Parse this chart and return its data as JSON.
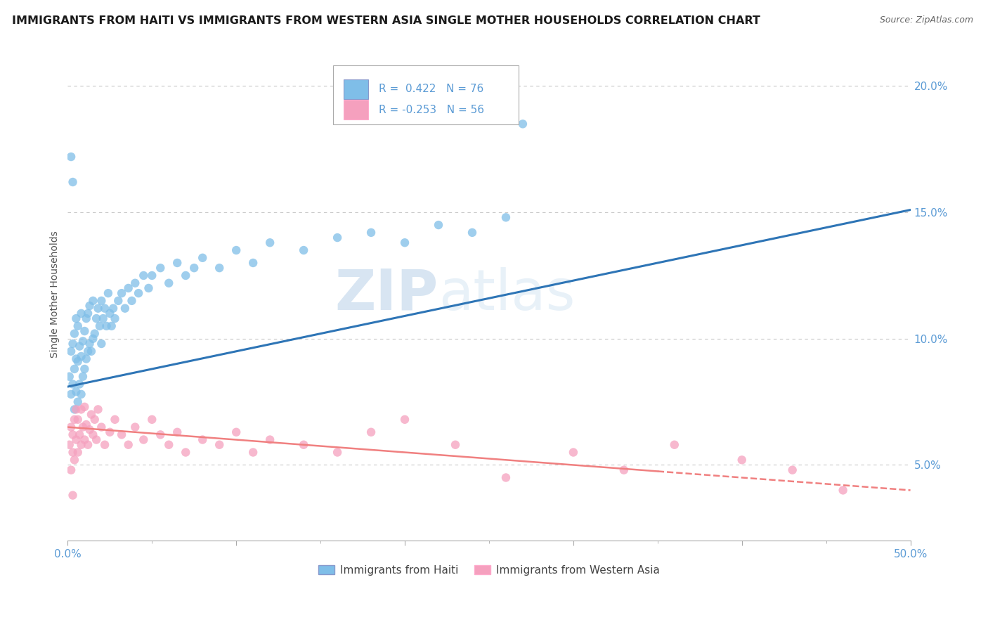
{
  "title": "IMMIGRANTS FROM HAITI VS IMMIGRANTS FROM WESTERN ASIA SINGLE MOTHER HOUSEHOLDS CORRELATION CHART",
  "source": "Source: ZipAtlas.com",
  "ylabel": "Single Mother Households",
  "xlim": [
    0,
    0.5
  ],
  "ylim": [
    0.02,
    0.215
  ],
  "yticks": [
    0.05,
    0.1,
    0.15,
    0.2
  ],
  "ytick_labels": [
    "5.0%",
    "10.0%",
    "15.0%",
    "20.0%"
  ],
  "xticks": [
    0.0,
    0.1,
    0.2,
    0.3,
    0.4,
    0.5
  ],
  "xtick_labels": [
    "0.0%",
    "",
    "",
    "",
    "",
    "50.0%"
  ],
  "haiti_R": 0.422,
  "haiti_N": 76,
  "western_asia_R": -0.253,
  "western_asia_N": 56,
  "haiti_color": "#7fbee8",
  "western_asia_color": "#f5a0be",
  "haiti_line_color": "#2e75b6",
  "western_asia_line_color": "#f08080",
  "legend_label_haiti": "Immigrants from Haiti",
  "legend_label_western_asia": "Immigrants from Western Asia",
  "background_color": "#ffffff",
  "grid_color": "#c8c8c8",
  "watermark_zip": "ZIP",
  "watermark_atlas": "atlas",
  "title_fontsize": 11.5,
  "axis_label_color": "#5b9bd5",
  "tick_color": "#5b9bd5",
  "haiti_line_start_y": 0.081,
  "haiti_line_end_y": 0.151,
  "wa_line_start_y": 0.065,
  "wa_line_end_y": 0.04,
  "haiti_x": [
    0.001,
    0.002,
    0.002,
    0.003,
    0.003,
    0.004,
    0.004,
    0.004,
    0.005,
    0.005,
    0.005,
    0.006,
    0.006,
    0.006,
    0.007,
    0.007,
    0.008,
    0.008,
    0.008,
    0.009,
    0.009,
    0.01,
    0.01,
    0.011,
    0.011,
    0.012,
    0.012,
    0.013,
    0.013,
    0.014,
    0.015,
    0.015,
    0.016,
    0.017,
    0.018,
    0.019,
    0.02,
    0.02,
    0.021,
    0.022,
    0.023,
    0.024,
    0.025,
    0.026,
    0.027,
    0.028,
    0.03,
    0.032,
    0.034,
    0.036,
    0.038,
    0.04,
    0.042,
    0.045,
    0.048,
    0.05,
    0.055,
    0.06,
    0.065,
    0.07,
    0.075,
    0.08,
    0.09,
    0.1,
    0.11,
    0.12,
    0.14,
    0.16,
    0.18,
    0.2,
    0.22,
    0.24,
    0.26,
    0.27,
    0.002,
    0.003
  ],
  "haiti_y": [
    0.085,
    0.078,
    0.095,
    0.082,
    0.098,
    0.072,
    0.088,
    0.102,
    0.079,
    0.092,
    0.108,
    0.075,
    0.091,
    0.105,
    0.082,
    0.097,
    0.078,
    0.093,
    0.11,
    0.085,
    0.099,
    0.088,
    0.103,
    0.092,
    0.108,
    0.095,
    0.11,
    0.098,
    0.113,
    0.095,
    0.1,
    0.115,
    0.102,
    0.108,
    0.112,
    0.105,
    0.098,
    0.115,
    0.108,
    0.112,
    0.105,
    0.118,
    0.11,
    0.105,
    0.112,
    0.108,
    0.115,
    0.118,
    0.112,
    0.12,
    0.115,
    0.122,
    0.118,
    0.125,
    0.12,
    0.125,
    0.128,
    0.122,
    0.13,
    0.125,
    0.128,
    0.132,
    0.128,
    0.135,
    0.13,
    0.138,
    0.135,
    0.14,
    0.142,
    0.138,
    0.145,
    0.142,
    0.148,
    0.185,
    0.172,
    0.162
  ],
  "wa_x": [
    0.001,
    0.002,
    0.002,
    0.003,
    0.003,
    0.004,
    0.004,
    0.005,
    0.005,
    0.006,
    0.006,
    0.007,
    0.008,
    0.008,
    0.009,
    0.01,
    0.01,
    0.011,
    0.012,
    0.013,
    0.014,
    0.015,
    0.016,
    0.017,
    0.018,
    0.02,
    0.022,
    0.025,
    0.028,
    0.032,
    0.036,
    0.04,
    0.045,
    0.05,
    0.055,
    0.06,
    0.065,
    0.07,
    0.08,
    0.09,
    0.1,
    0.11,
    0.12,
    0.14,
    0.16,
    0.18,
    0.2,
    0.23,
    0.26,
    0.3,
    0.33,
    0.36,
    0.4,
    0.43,
    0.46,
    0.003
  ],
  "wa_y": [
    0.058,
    0.065,
    0.048,
    0.062,
    0.055,
    0.068,
    0.052,
    0.06,
    0.072,
    0.055,
    0.068,
    0.062,
    0.058,
    0.072,
    0.065,
    0.06,
    0.073,
    0.066,
    0.058,
    0.064,
    0.07,
    0.062,
    0.068,
    0.06,
    0.072,
    0.065,
    0.058,
    0.063,
    0.068,
    0.062,
    0.058,
    0.065,
    0.06,
    0.068,
    0.062,
    0.058,
    0.063,
    0.055,
    0.06,
    0.058,
    0.063,
    0.055,
    0.06,
    0.058,
    0.055,
    0.063,
    0.068,
    0.058,
    0.045,
    0.055,
    0.048,
    0.058,
    0.052,
    0.048,
    0.04,
    0.038
  ]
}
